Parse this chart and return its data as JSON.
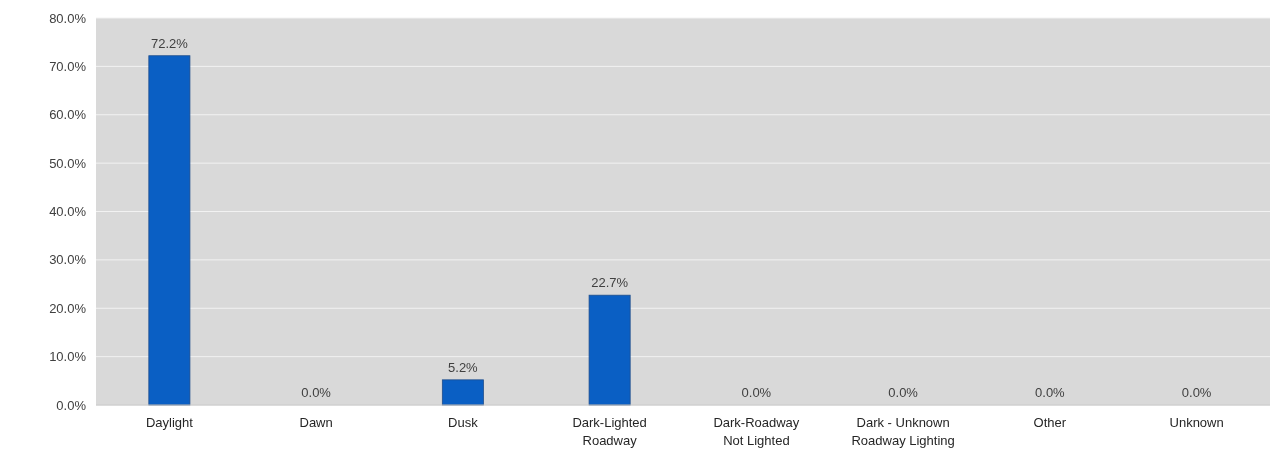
{
  "chart_data": {
    "type": "bar",
    "categories": [
      "Daylight",
      "Dawn",
      "Dusk",
      "Dark-Lighted Roadway",
      "Dark-Roadway Not Lighted",
      "Dark - Unknown Roadway Lighting",
      "Other",
      "Unknown"
    ],
    "values": [
      72.2,
      0.0,
      5.2,
      22.7,
      0.0,
      0.0,
      0.0,
      0.0
    ],
    "value_labels": [
      "72.2%",
      "0.0%",
      "5.2%",
      "22.7%",
      "0.0%",
      "0.0%",
      "0.0%",
      "0.0%"
    ],
    "color": "#0a5fc4",
    "ylim": [
      0,
      80
    ],
    "yticks": [
      {
        "value": 0,
        "label": "0.0%"
      },
      {
        "value": 10,
        "label": "10.0%"
      },
      {
        "value": 20,
        "label": "20.0%"
      },
      {
        "value": 30,
        "label": "30.0%"
      },
      {
        "value": 40,
        "label": "40.0%"
      },
      {
        "value": 50,
        "label": "50.0%"
      },
      {
        "value": 60,
        "label": "60.0%"
      },
      {
        "value": 70,
        "label": "70.0%"
      },
      {
        "value": 80,
        "label": "80.0%"
      }
    ],
    "grid": "y"
  }
}
